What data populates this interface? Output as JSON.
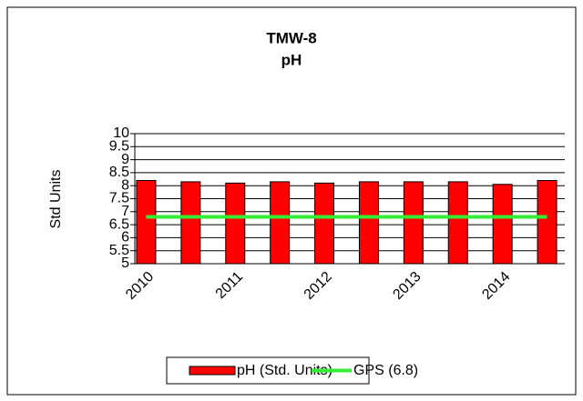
{
  "chart_data": {
    "type": "bar",
    "title": "TMW-8",
    "subtitle": "pH",
    "y_label": "Std Units",
    "categories": [
      "2010",
      null,
      "2011",
      null,
      "2012",
      null,
      "2013",
      null,
      "2014",
      null
    ],
    "series": [
      {
        "name": "pH (Std. Units)",
        "type": "bar",
        "color": "#ff0000",
        "values": [
          8.2,
          8.15,
          8.1,
          8.15,
          8.1,
          8.15,
          8.15,
          8.15,
          8.05,
          8.2
        ]
      },
      {
        "name": "GPS (6.8)",
        "type": "line",
        "color": "#33ee33",
        "values": [
          6.8,
          6.8,
          6.8,
          6.8,
          6.8,
          6.8,
          6.8,
          6.8,
          6.8,
          6.8
        ]
      }
    ],
    "ylim": [
      5,
      10
    ],
    "yticks": [
      5,
      5.5,
      6,
      6.5,
      7,
      7.5,
      8,
      8.5,
      9,
      9.5,
      10
    ],
    "grid": true,
    "legend": "bottom"
  }
}
